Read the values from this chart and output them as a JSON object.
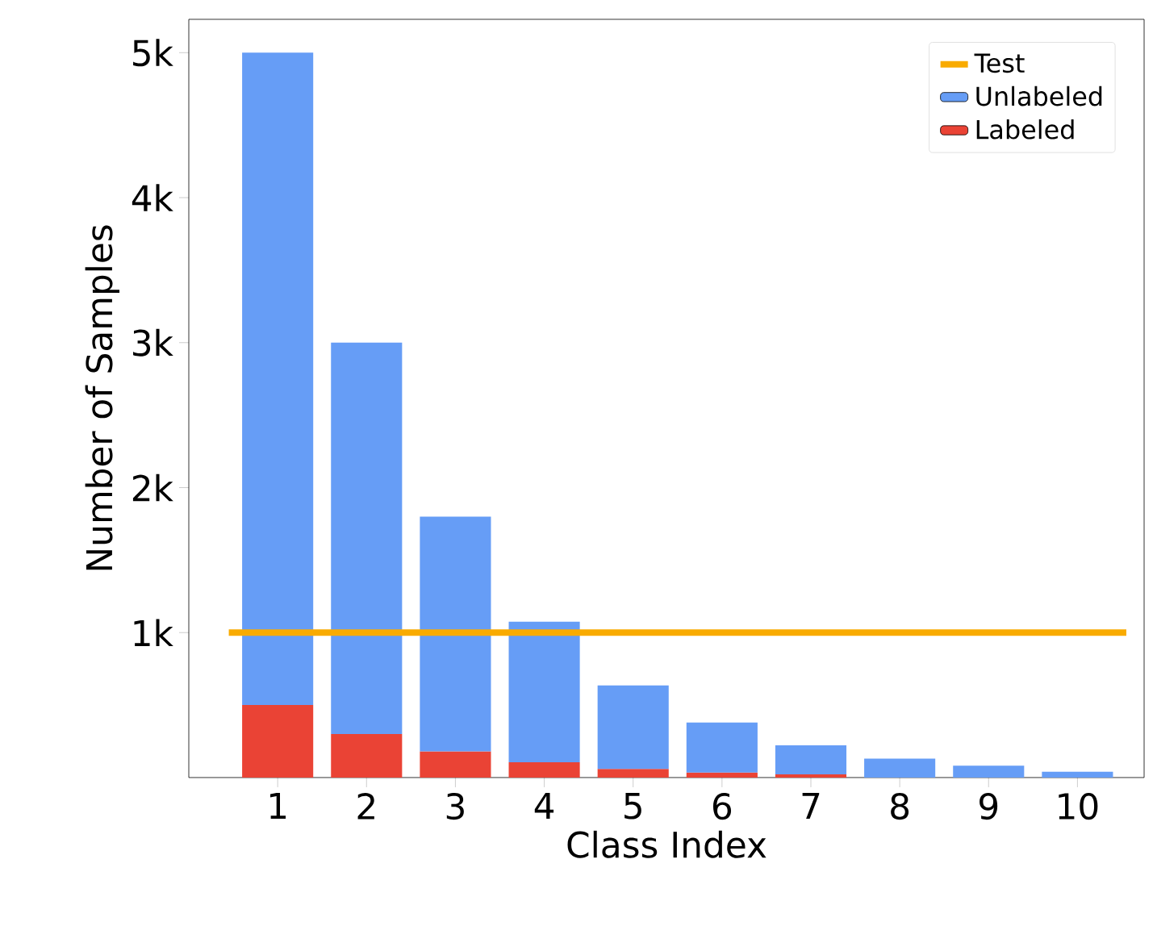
{
  "chart_data": {
    "type": "bar",
    "stacked": true,
    "xlabel": "Class Index",
    "ylabel": "Number of Samples",
    "categories": [
      "1",
      "2",
      "3",
      "4",
      "5",
      "6",
      "7",
      "8",
      "9",
      "10"
    ],
    "series": [
      {
        "name": "Labeled",
        "color": "#ea4335",
        "values": [
          500,
          300,
          180,
          105,
          60,
          35,
          22,
          null,
          null,
          null
        ]
      },
      {
        "name": "Unlabeled",
        "color": "#669df6",
        "values": [
          4500,
          2700,
          1620,
          970,
          575,
          345,
          200,
          130,
          82,
          40
        ]
      }
    ],
    "ref_lines": [
      {
        "axis": "y",
        "value": 1000,
        "label": "Test",
        "color": "#f9ab00"
      }
    ],
    "ylim": [
      0,
      5230
    ],
    "yticks": [
      {
        "value": 1000,
        "label": "1k"
      },
      {
        "value": 2000,
        "label": "2k"
      },
      {
        "value": 3000,
        "label": "3k"
      },
      {
        "value": 4000,
        "label": "4k"
      },
      {
        "value": 5000,
        "label": "5k"
      }
    ],
    "legend": "top right",
    "grid": false
  }
}
